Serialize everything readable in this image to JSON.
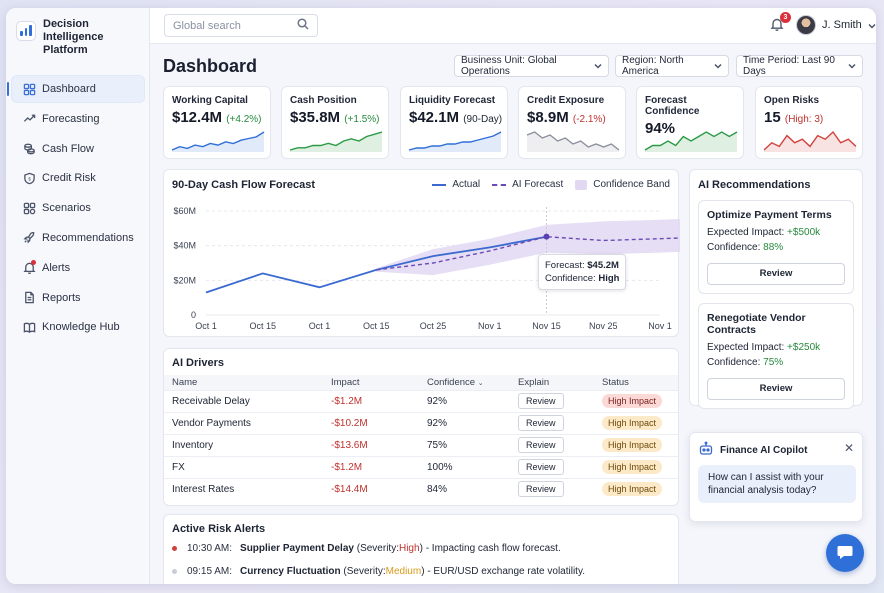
{
  "app": {
    "name": "Decision Intelligence Platform"
  },
  "sidebar": {
    "items": [
      {
        "label": "Dashboard",
        "icon": "grid-icon"
      },
      {
        "label": "Forecasting",
        "icon": "trend-icon"
      },
      {
        "label": "Cash Flow",
        "icon": "coins-icon"
      },
      {
        "label": "Credit Risk",
        "icon": "shield-icon"
      },
      {
        "label": "Scenarios",
        "icon": "blocks-icon"
      },
      {
        "label": "Recommendations",
        "icon": "rocket-icon"
      },
      {
        "label": "Alerts",
        "icon": "bell-icon"
      },
      {
        "label": "Reports",
        "icon": "document-icon"
      },
      {
        "label": "Knowledge Hub",
        "icon": "book-icon"
      }
    ]
  },
  "topbar": {
    "search_placeholder": "Global search",
    "notifications": "3",
    "user": "J. Smith"
  },
  "page": {
    "title": "Dashboard",
    "filters": [
      "Business Unit: Global Operations",
      "Region: North America",
      "Time Period: Last 90 Days"
    ]
  },
  "kpis": [
    {
      "label": "Working Capital",
      "value": "$12.4M",
      "delta": "(+4.2%)",
      "color": "#2f6fd8",
      "delta_color": "#268a3c",
      "spark": [
        3,
        5,
        4,
        6,
        5,
        7,
        6,
        8,
        7,
        9,
        10,
        11,
        14
      ]
    },
    {
      "label": "Cash Position",
      "value": "$35.8M",
      "delta": "(+1.5%)",
      "color": "#2a9a44",
      "delta_color": "#268a3c",
      "spark": [
        4,
        5,
        5,
        6,
        6,
        7,
        6,
        8,
        9,
        8,
        10,
        11,
        12
      ]
    },
    {
      "label": "Liquidity Forecast",
      "value": "$42.1M",
      "delta": "(90-Day)",
      "color": "#2f6fd8",
      "delta_color": "#1d2433",
      "spark": [
        4,
        5,
        5,
        6,
        6,
        7,
        7,
        8,
        8,
        9,
        10,
        11,
        13
      ]
    },
    {
      "label": "Credit Exposure",
      "value": "$8.9M",
      "delta": "(-2.1%)",
      "color": "#8a8f9c",
      "delta_color": "#c0322f",
      "spark": [
        9,
        10,
        8,
        9,
        7,
        8,
        6,
        7,
        5,
        6,
        5,
        6,
        4
      ]
    },
    {
      "label": "Forecast Confidence",
      "value": "94%",
      "delta": "",
      "color": "#2a9a44",
      "delta_color": "#268a3c",
      "spark": [
        6,
        7,
        7,
        8,
        7,
        9,
        8,
        9,
        10,
        9,
        10,
        9,
        10
      ]
    },
    {
      "label": "Open Risks",
      "value": "15",
      "delta": "(High: 3)",
      "color": "#d0413c",
      "delta_color": "#c0322f",
      "spark": [
        5,
        7,
        6,
        9,
        7,
        8,
        6,
        9,
        8,
        10,
        7,
        8,
        6
      ]
    }
  ],
  "chart_data": {
    "type": "line",
    "title": "90-Day Cash Flow Forecast",
    "categories": [
      "Oct 1",
      "Oct 15",
      "Oct 1",
      "Oct 15",
      "Oct 25",
      "Nov 1",
      "Nov 15",
      "Nov 25",
      "Nov 1"
    ],
    "ylim": [
      0,
      60
    ],
    "yticks": [
      "0",
      "$20M",
      "$40M",
      "$60M"
    ],
    "ytick_values": [
      0,
      20,
      40,
      60
    ],
    "legend": [
      "Actual",
      "AI Forecast",
      "Confidence Band"
    ],
    "legend_position": "top-right",
    "series": [
      {
        "name": "Actual",
        "x": [
          0,
          1,
          2,
          3,
          4,
          5,
          6
        ],
        "values": [
          13,
          24,
          16,
          26,
          34,
          39,
          45.2
        ],
        "color": "#3a6ad0"
      },
      {
        "name": "AI Forecast",
        "x": [
          3,
          4,
          5,
          6,
          7,
          8,
          8.9
        ],
        "values": [
          26,
          30,
          37,
          45.2,
          43,
          44,
          45
        ],
        "color": "#6b4bb8"
      }
    ],
    "band": {
      "x": [
        3,
        4,
        5,
        6,
        7,
        8,
        8.9
      ],
      "upper": [
        27,
        38,
        44,
        52,
        54,
        55,
        56
      ],
      "lower": [
        25,
        23,
        29,
        36,
        35,
        36,
        37
      ],
      "color": "#e2d8f2"
    },
    "grid": true,
    "tooltip": {
      "label": "Forecast:",
      "value": "$45.2M",
      "conf_label": "Confidence:",
      "conf_value": "High"
    }
  },
  "drivers": {
    "title": "AI Drivers",
    "columns": [
      "Name",
      "Impact",
      "Confidence",
      "Explain",
      "Status"
    ],
    "rows": [
      {
        "name": "Receivable Delay",
        "impact": "-$1.2M",
        "confidence": "92%",
        "explain": "Review",
        "status": "High Impact",
        "tone": "red"
      },
      {
        "name": "Vendor Payments",
        "impact": "-$10.2M",
        "confidence": "92%",
        "explain": "Review",
        "status": "High Impact",
        "tone": "amber"
      },
      {
        "name": "Inventory",
        "impact": "-$13.6M",
        "confidence": "75%",
        "explain": "Review",
        "status": "High Impact",
        "tone": "amber"
      },
      {
        "name": "FX",
        "impact": "-$1.2M",
        "confidence": "100%",
        "explain": "Review",
        "status": "High Impact",
        "tone": "amber"
      },
      {
        "name": "Interest Rates",
        "impact": "-$14.4M",
        "confidence": "84%",
        "explain": "Review",
        "status": "High Impact",
        "tone": "amber"
      }
    ]
  },
  "recommendations": {
    "title": "AI Recommendations",
    "items": [
      {
        "title": "Optimize Payment Terms",
        "impact_label": "Expected Impact:",
        "impact": "+$500k",
        "conf_label": "Confidence:",
        "conf": "88%",
        "button": "Review"
      },
      {
        "title": "Renegotiate Vendor Contracts",
        "impact_label": "Expected Impact:",
        "impact": "+$250k",
        "conf_label": "Confidence:",
        "conf": "75%",
        "button": "Review"
      }
    ]
  },
  "copilot": {
    "title": "Finance AI Copilot",
    "message": "How can I assist with your financial analysis today?"
  },
  "risks": {
    "title": "Active Risk Alerts",
    "items": [
      {
        "time": "10:30 AM:",
        "subject": "Supplier Payment Delay",
        "sev_prefix": "(Severity: ",
        "severity": "High",
        "sev_suffix": ")",
        "detail": "- Impacting cash flow forecast.",
        "sev_color": "#c0322f",
        "dot": "#d0413c"
      },
      {
        "time": "09:15 AM:",
        "subject": "Currency Fluctuation",
        "sev_prefix": "(Severity: ",
        "severity": "Medium",
        "sev_suffix": ")",
        "detail": "- EUR/USD exchange rate volatility.",
        "sev_color": "#d99a1a",
        "dot": "#c9ccd6"
      }
    ]
  }
}
